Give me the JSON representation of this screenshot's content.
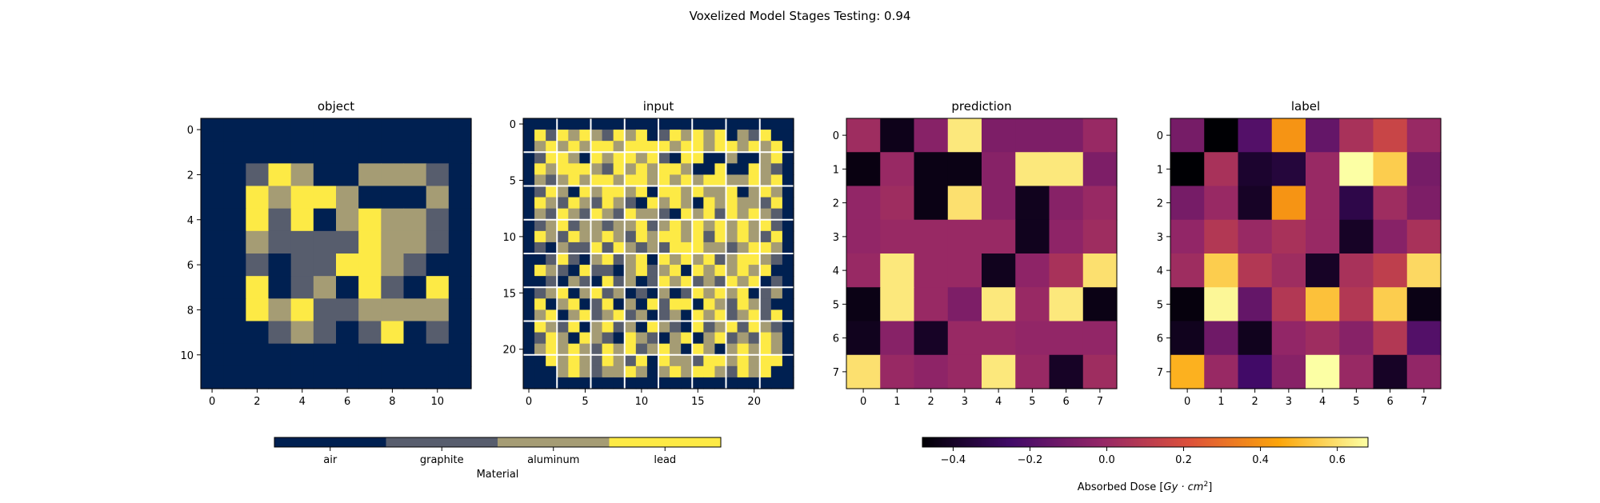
{
  "figure": {
    "suptitle": "Voxelized Model Stages Testing: 0.94"
  },
  "colors": {
    "materials": [
      "#002051",
      "#575d6d",
      "#a59c74",
      "#fdea45"
    ],
    "inferno_stops": [
      "#000004",
      "#420a68",
      "#932667",
      "#dd513a",
      "#fca50a",
      "#fcffa4"
    ]
  },
  "chart_data": [
    {
      "type": "heatmap",
      "title": "object",
      "colormap": "cividis-materials",
      "xticks": [
        "0",
        "2",
        "4",
        "6",
        "8",
        "10"
      ],
      "yticks": [
        "0",
        "2",
        "4",
        "6",
        "8",
        "10"
      ],
      "xlim": [
        -0.5,
        11.5
      ],
      "ylim": [
        11.5,
        -0.5
      ],
      "matrix": [
        [
          0,
          0,
          0,
          0,
          0,
          0,
          0,
          0,
          0,
          0,
          0,
          0
        ],
        [
          0,
          0,
          0,
          0,
          0,
          0,
          0,
          0,
          0,
          0,
          0,
          0
        ],
        [
          0,
          0,
          1,
          3,
          2,
          0,
          0,
          2,
          2,
          2,
          1,
          0
        ],
        [
          0,
          0,
          3,
          2,
          3,
          3,
          2,
          0,
          0,
          0,
          2,
          0
        ],
        [
          0,
          0,
          3,
          1,
          3,
          0,
          2,
          3,
          2,
          2,
          1,
          0
        ],
        [
          0,
          0,
          2,
          1,
          1,
          1,
          1,
          3,
          2,
          2,
          1,
          0
        ],
        [
          0,
          0,
          1,
          0,
          1,
          1,
          3,
          3,
          2,
          1,
          0,
          0
        ],
        [
          0,
          0,
          3,
          0,
          1,
          2,
          0,
          3,
          1,
          0,
          3,
          0
        ],
        [
          0,
          0,
          3,
          2,
          3,
          1,
          1,
          2,
          2,
          2,
          2,
          0
        ],
        [
          0,
          0,
          0,
          1,
          2,
          1,
          0,
          1,
          3,
          0,
          1,
          0
        ],
        [
          0,
          0,
          0,
          0,
          0,
          0,
          0,
          0,
          0,
          0,
          0,
          0
        ],
        [
          0,
          0,
          0,
          0,
          0,
          0,
          0,
          0,
          0,
          0,
          0,
          0
        ]
      ]
    },
    {
      "type": "heatmap",
      "title": "input",
      "colormap": "cividis-materials",
      "xticks": [
        "0",
        "5",
        "10",
        "15",
        "20"
      ],
      "yticks": [
        "0",
        "5",
        "10",
        "15",
        "20"
      ],
      "xlim": [
        -0.5,
        23.5
      ],
      "ylim": [
        23.5,
        -0.5
      ],
      "grid_lines": [
        2.5,
        5.5,
        8.5,
        11.5,
        14.5,
        17.5,
        20.5
      ],
      "matrix": [
        [
          0,
          0,
          0,
          0,
          0,
          0,
          0,
          0,
          0,
          0,
          0,
          0,
          0,
          0,
          0,
          0,
          0,
          0,
          0,
          0,
          0,
          0,
          0,
          0
        ],
        [
          0,
          3,
          1,
          3,
          2,
          3,
          2,
          1,
          3,
          2,
          3,
          0,
          1,
          3,
          2,
          3,
          2,
          3,
          0,
          2,
          1,
          3,
          0,
          0
        ],
        [
          0,
          2,
          3,
          2,
          3,
          2,
          3,
          3,
          2,
          3,
          3,
          3,
          3,
          2,
          3,
          3,
          2,
          3,
          3,
          2,
          3,
          2,
          3,
          0
        ],
        [
          0,
          1,
          3,
          3,
          2,
          0,
          3,
          2,
          3,
          3,
          2,
          3,
          1,
          0,
          3,
          3,
          0,
          0,
          2,
          0,
          0,
          2,
          3,
          0
        ],
        [
          0,
          3,
          2,
          3,
          3,
          3,
          2,
          1,
          3,
          2,
          3,
          2,
          3,
          3,
          2,
          0,
          0,
          3,
          0,
          0,
          3,
          2,
          1,
          0
        ],
        [
          0,
          2,
          1,
          2,
          3,
          2,
          3,
          3,
          2,
          3,
          3,
          2,
          3,
          2,
          3,
          2,
          3,
          3,
          2,
          2,
          3,
          2,
          3,
          0
        ],
        [
          0,
          1,
          3,
          2,
          0,
          3,
          2,
          3,
          3,
          2,
          3,
          0,
          3,
          3,
          2,
          3,
          2,
          2,
          3,
          0,
          2,
          3,
          2,
          0
        ],
        [
          0,
          3,
          2,
          1,
          3,
          2,
          1,
          3,
          2,
          1,
          0,
          3,
          2,
          3,
          2,
          0,
          3,
          2,
          3,
          2,
          2,
          1,
          3,
          0
        ],
        [
          0,
          2,
          1,
          3,
          2,
          1,
          3,
          2,
          1,
          3,
          2,
          2,
          1,
          0,
          3,
          2,
          3,
          1,
          3,
          2,
          3,
          2,
          1,
          0
        ],
        [
          0,
          1,
          2,
          3,
          1,
          2,
          2,
          1,
          2,
          2,
          3,
          1,
          2,
          3,
          2,
          3,
          2,
          3,
          2,
          3,
          2,
          3,
          1,
          0
        ],
        [
          0,
          3,
          2,
          1,
          3,
          2,
          2,
          3,
          2,
          1,
          3,
          2,
          3,
          3,
          2,
          3,
          1,
          3,
          2,
          3,
          2,
          1,
          3,
          0
        ],
        [
          0,
          1,
          0,
          2,
          1,
          1,
          3,
          1,
          3,
          2,
          1,
          2,
          1,
          3,
          3,
          3,
          2,
          2,
          1,
          2,
          3,
          3,
          2,
          0
        ],
        [
          0,
          0,
          1,
          3,
          1,
          0,
          2,
          3,
          1,
          2,
          3,
          0,
          3,
          2,
          3,
          2,
          3,
          1,
          2,
          3,
          3,
          2,
          1,
          0
        ],
        [
          0,
          3,
          2,
          1,
          0,
          3,
          1,
          1,
          0,
          2,
          3,
          1,
          2,
          3,
          0,
          3,
          2,
          3,
          2,
          3,
          2,
          3,
          0,
          0
        ],
        [
          0,
          0,
          1,
          0,
          2,
          1,
          0,
          3,
          1,
          2,
          0,
          1,
          3,
          2,
          3,
          1,
          2,
          1,
          3,
          2,
          3,
          0,
          1,
          0
        ],
        [
          0,
          1,
          2,
          3,
          0,
          2,
          3,
          1,
          2,
          0,
          1,
          0,
          2,
          0,
          1,
          3,
          2,
          3,
          2,
          3,
          0,
          1,
          2,
          0
        ],
        [
          0,
          3,
          0,
          2,
          3,
          0,
          1,
          3,
          0,
          2,
          0,
          3,
          1,
          3,
          3,
          0,
          3,
          2,
          1,
          3,
          2,
          1,
          0,
          0
        ],
        [
          0,
          2,
          3,
          0,
          2,
          3,
          1,
          2,
          3,
          1,
          2,
          0,
          1,
          2,
          0,
          3,
          2,
          3,
          1,
          2,
          3,
          1,
          3,
          0
        ],
        [
          0,
          3,
          2,
          1,
          3,
          0,
          2,
          3,
          1,
          2,
          0,
          3,
          2,
          1,
          0,
          3,
          1,
          2,
          3,
          1,
          3,
          2,
          1,
          0
        ],
        [
          0,
          1,
          3,
          2,
          0,
          3,
          2,
          1,
          0,
          3,
          2,
          1,
          0,
          2,
          3,
          0,
          2,
          3,
          1,
          2,
          1,
          3,
          2,
          0
        ],
        [
          0,
          2,
          3,
          2,
          3,
          2,
          1,
          3,
          2,
          3,
          1,
          2,
          3,
          2,
          0,
          3,
          2,
          0,
          2,
          3,
          2,
          3,
          2,
          0
        ],
        [
          0,
          0,
          3,
          2,
          3,
          2,
          1,
          3,
          2,
          1,
          3,
          0,
          3,
          2,
          2,
          1,
          3,
          3,
          2,
          3,
          2,
          3,
          3,
          0
        ],
        [
          0,
          0,
          0,
          2,
          3,
          2,
          1,
          2,
          2,
          3,
          2,
          0,
          2,
          3,
          2,
          3,
          3,
          2,
          1,
          3,
          2,
          3,
          0,
          0
        ],
        [
          0,
          0,
          0,
          0,
          0,
          0,
          0,
          0,
          0,
          0,
          0,
          0,
          0,
          0,
          0,
          0,
          0,
          0,
          0,
          0,
          0,
          0,
          0,
          0
        ]
      ]
    },
    {
      "type": "heatmap",
      "title": "prediction",
      "colormap": "inferno",
      "vmin": -0.48,
      "vmax": 0.68,
      "xticks": [
        "0",
        "1",
        "2",
        "3",
        "4",
        "5",
        "6",
        "7"
      ],
      "yticks": [
        "0",
        "1",
        "2",
        "3",
        "4",
        "5",
        "6",
        "7"
      ],
      "xlim": [
        -0.5,
        7.5
      ],
      "ylim": [
        7.5,
        -0.5
      ],
      "matrix": [
        [
          0.02,
          -0.43,
          -0.05,
          0.62,
          -0.08,
          -0.08,
          -0.08,
          0.0
        ],
        [
          -0.45,
          0.0,
          -0.44,
          -0.44,
          -0.05,
          0.62,
          0.62,
          -0.08
        ],
        [
          -0.02,
          0.02,
          -0.44,
          0.6,
          -0.05,
          -0.42,
          -0.05,
          0.0
        ],
        [
          -0.02,
          0.0,
          0.0,
          0.0,
          0.0,
          -0.42,
          -0.03,
          0.02
        ],
        [
          0.0,
          0.62,
          0.0,
          0.0,
          -0.42,
          -0.03,
          0.05,
          0.6
        ],
        [
          -0.44,
          0.62,
          0.0,
          -0.08,
          0.62,
          0.0,
          0.62,
          -0.44
        ],
        [
          -0.42,
          -0.05,
          -0.4,
          0.0,
          0.0,
          -0.02,
          -0.02,
          -0.02
        ],
        [
          0.6,
          0.0,
          -0.03,
          0.0,
          0.62,
          0.0,
          -0.4,
          0.02
        ]
      ]
    },
    {
      "type": "heatmap",
      "title": "label",
      "colormap": "inferno",
      "vmin": -0.48,
      "vmax": 0.68,
      "xticks": [
        "0",
        "1",
        "2",
        "3",
        "4",
        "5",
        "6",
        "7"
      ],
      "yticks": [
        "0",
        "1",
        "2",
        "3",
        "4",
        "5",
        "6",
        "7"
      ],
      "xlim": [
        -0.5,
        7.5
      ],
      "ylim": [
        7.5,
        -0.5
      ],
      "matrix": [
        [
          -0.1,
          -0.48,
          -0.2,
          0.4,
          -0.15,
          0.05,
          0.15,
          0.0
        ],
        [
          -0.48,
          0.05,
          -0.38,
          -0.35,
          0.0,
          0.68,
          0.55,
          -0.1
        ],
        [
          -0.1,
          0.0,
          -0.4,
          0.4,
          0.0,
          -0.32,
          0.02,
          -0.08
        ],
        [
          -0.02,
          0.08,
          0.0,
          0.05,
          0.0,
          -0.4,
          -0.05,
          0.05
        ],
        [
          0.02,
          0.55,
          0.08,
          0.02,
          -0.4,
          0.05,
          0.12,
          0.58
        ],
        [
          -0.46,
          0.66,
          -0.15,
          0.08,
          0.52,
          0.08,
          0.55,
          -0.44
        ],
        [
          -0.42,
          -0.12,
          -0.42,
          -0.02,
          0.02,
          -0.05,
          0.08,
          -0.2
        ],
        [
          0.48,
          0.0,
          -0.25,
          -0.05,
          0.68,
          0.0,
          -0.4,
          -0.02
        ]
      ]
    }
  ],
  "colorbars": {
    "material": {
      "label": "Material",
      "categories": [
        "air",
        "graphite",
        "aluminum",
        "lead"
      ]
    },
    "dose": {
      "label_prefix": "Absorbed Dose [",
      "label_math": "Gy · cm",
      "label_sup": "2",
      "label_suffix": "]",
      "vmin": -0.48,
      "vmax": 0.68,
      "ticks": [
        -0.4,
        -0.2,
        0.0,
        0.2,
        0.4,
        0.6
      ],
      "tick_labels": [
        "−0.4",
        "−0.2",
        "0.0",
        "0.2",
        "0.4",
        "0.6"
      ]
    }
  }
}
